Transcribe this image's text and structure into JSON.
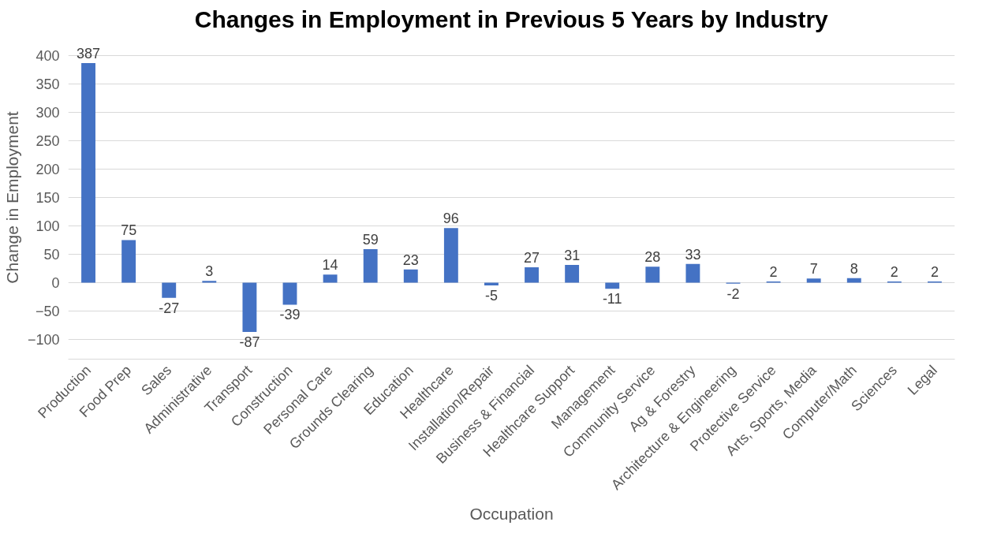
{
  "chart_data": {
    "type": "bar",
    "title": "Changes in Employment in Previous 5 Years by Industry",
    "xlabel": "Occupation",
    "ylabel": "Change in Employment",
    "categories": [
      "Production",
      "Food Prep",
      "Sales",
      "Administrative",
      "Transport",
      "Construction",
      "Personal Care",
      "Grounds Clearing",
      "Education",
      "Healthcare",
      "Installation/Repair",
      "Business & Financial",
      "Healthcare Support",
      "Management",
      "Community Service",
      "Ag & Forestry",
      "Architecture & Engineering",
      "Protective Service",
      "Arts, Sports, Media",
      "Computer/Math",
      "Sciences",
      "Legal"
    ],
    "values": [
      387,
      75,
      -27,
      3,
      -87,
      -39,
      14,
      59,
      23,
      96,
      -5,
      27,
      31,
      -11,
      28,
      33,
      -2,
      2,
      7,
      8,
      2,
      2
    ],
    "color": "#4472c4",
    "ylim": [
      -100,
      400
    ],
    "yticks": [
      -100,
      -50,
      0,
      50,
      100,
      150,
      200,
      250,
      300,
      350,
      400
    ],
    "grid": "y",
    "data_labels": true
  }
}
